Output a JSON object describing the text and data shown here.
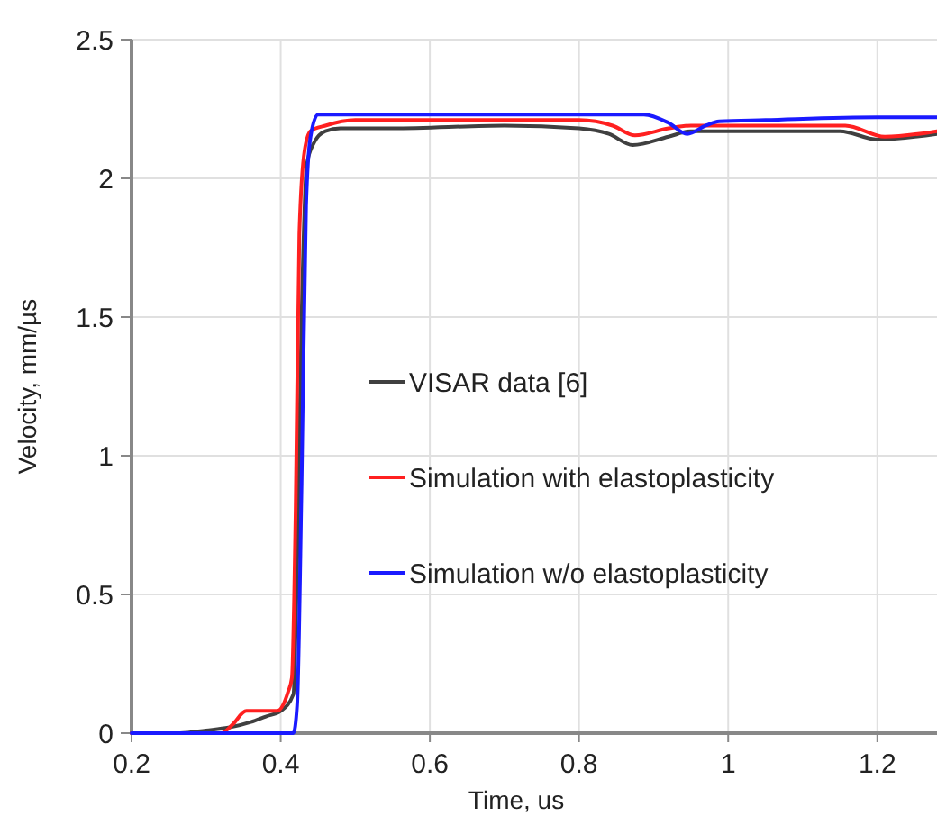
{
  "chart_data": {
    "type": "line",
    "xlabel": "Time, us",
    "ylabel": "Velocity, mm/µs",
    "xlim": [
      0.2,
      1.28
    ],
    "ylim": [
      0,
      2.5
    ],
    "xticks": [
      0.2,
      0.4,
      0.6,
      0.8,
      1,
      1.2
    ],
    "yticks": [
      0,
      0.5,
      1,
      1.5,
      2,
      2.5
    ],
    "grid": true,
    "legend": "left",
    "line_style": "solid",
    "series": [
      {
        "name": "VISAR data [6]",
        "color": "#404040",
        "x": [
          0.2,
          0.265,
          0.3,
          0.33,
          0.36,
          0.38,
          0.4,
          0.417,
          0.422,
          0.428,
          0.435,
          0.445,
          0.46,
          0.48,
          0.55,
          0.7,
          0.8,
          0.84,
          0.872,
          0.92,
          0.95,
          1.05,
          1.15,
          1.2,
          1.28
        ],
        "values": [
          0,
          0,
          0.01,
          0.02,
          0.04,
          0.06,
          0.08,
          0.14,
          0.6,
          1.5,
          2.05,
          2.13,
          2.17,
          2.18,
          2.18,
          2.19,
          2.18,
          2.16,
          2.12,
          2.15,
          2.17,
          2.17,
          2.17,
          2.14,
          2.16
        ]
      },
      {
        "name": "Simulation with elastoplasticity",
        "color": "#ff2020",
        "x": [
          0.2,
          0.32,
          0.335,
          0.354,
          0.375,
          0.395,
          0.41,
          0.415,
          0.42,
          0.425,
          0.432,
          0.44,
          0.46,
          0.5,
          0.6,
          0.8,
          0.845,
          0.875,
          0.92,
          0.95,
          1.05,
          1.157,
          1.21,
          1.28
        ],
        "values": [
          0,
          0,
          0.03,
          0.08,
          0.08,
          0.08,
          0.15,
          0.2,
          0.8,
          1.8,
          2.1,
          2.17,
          2.19,
          2.21,
          2.21,
          2.21,
          2.19,
          2.155,
          2.18,
          2.19,
          2.19,
          2.19,
          2.15,
          2.17
        ]
      },
      {
        "name": "Simulation w/o elastoplasticity",
        "color": "#1a1aff",
        "x": [
          0.2,
          0.417,
          0.422,
          0.428,
          0.434,
          0.44,
          0.45,
          0.6,
          0.8,
          0.887,
          0.92,
          0.945,
          0.97,
          0.988,
          1.05,
          1.2,
          1.28
        ],
        "values": [
          0,
          0,
          0.1,
          0.9,
          1.9,
          2.15,
          2.23,
          2.23,
          2.23,
          2.23,
          2.2,
          2.16,
          2.19,
          2.205,
          2.21,
          2.22,
          2.22
        ]
      }
    ]
  }
}
